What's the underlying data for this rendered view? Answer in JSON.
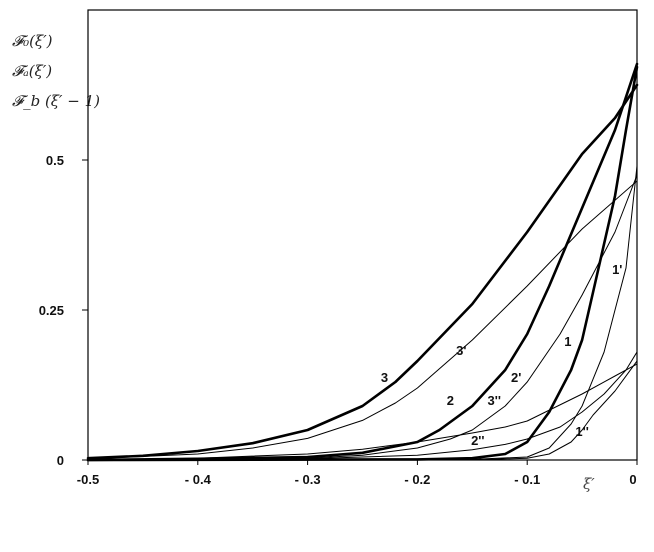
{
  "chart_data": {
    "type": "line",
    "y_axis_title_lines": [
      "𝓕₀(ξ′)",
      "𝓕ₐ(ξ′)",
      "𝓕_b (ξ′ − 1)"
    ],
    "xlabel": "ξ′",
    "xlim": [
      -0.5,
      0
    ],
    "ylim": [
      0,
      0.75
    ],
    "x_ticks": [
      {
        "value": -0.5,
        "label": "-0.5"
      },
      {
        "value": -0.4,
        "label": "- 0.4"
      },
      {
        "value": -0.3,
        "label": "- 0.3"
      },
      {
        "value": -0.2,
        "label": "- 0.2"
      },
      {
        "value": -0.1,
        "label": "- 0.1"
      },
      {
        "value": 0,
        "label": "0"
      }
    ],
    "y_ticks": [
      {
        "value": 0,
        "label": "0"
      },
      {
        "value": 0.25,
        "label": "0.25"
      },
      {
        "value": 0.5,
        "label": "0.5"
      }
    ],
    "grid": false,
    "legend": "none",
    "series": [
      {
        "label": "3",
        "weight": "bold",
        "points": [
          [
            -0.5,
            0.003
          ],
          [
            -0.45,
            0.007
          ],
          [
            -0.4,
            0.015
          ],
          [
            -0.35,
            0.028
          ],
          [
            -0.3,
            0.05
          ],
          [
            -0.25,
            0.09
          ],
          [
            -0.22,
            0.13
          ],
          [
            -0.2,
            0.165
          ],
          [
            -0.15,
            0.26
          ],
          [
            -0.1,
            0.38
          ],
          [
            -0.05,
            0.51
          ],
          [
            -0.02,
            0.57
          ],
          [
            0,
            0.625
          ]
        ]
      },
      {
        "label": "2",
        "weight": "bold",
        "points": [
          [
            -0.5,
            0.0
          ],
          [
            -0.4,
            0.002
          ],
          [
            -0.3,
            0.005
          ],
          [
            -0.25,
            0.012
          ],
          [
            -0.2,
            0.03
          ],
          [
            -0.18,
            0.05
          ],
          [
            -0.15,
            0.09
          ],
          [
            -0.12,
            0.15
          ],
          [
            -0.1,
            0.21
          ],
          [
            -0.08,
            0.29
          ],
          [
            -0.05,
            0.42
          ],
          [
            -0.02,
            0.55
          ],
          [
            0,
            0.66
          ]
        ]
      },
      {
        "label": "1",
        "weight": "bold",
        "points": [
          [
            -0.5,
            0.0
          ],
          [
            -0.2,
            0.001
          ],
          [
            -0.15,
            0.003
          ],
          [
            -0.12,
            0.01
          ],
          [
            -0.1,
            0.03
          ],
          [
            -0.08,
            0.08
          ],
          [
            -0.06,
            0.15
          ],
          [
            -0.05,
            0.2
          ],
          [
            -0.04,
            0.28
          ],
          [
            -0.02,
            0.44
          ],
          [
            -0.01,
            0.55
          ],
          [
            0,
            0.655
          ]
        ]
      },
      {
        "label": "3'",
        "weight": "thin",
        "points": [
          [
            -0.5,
            0.002
          ],
          [
            -0.4,
            0.01
          ],
          [
            -0.35,
            0.02
          ],
          [
            -0.3,
            0.036
          ],
          [
            -0.25,
            0.066
          ],
          [
            -0.22,
            0.095
          ],
          [
            -0.2,
            0.12
          ],
          [
            -0.15,
            0.2
          ],
          [
            -0.1,
            0.29
          ],
          [
            -0.05,
            0.385
          ],
          [
            0,
            0.465
          ]
        ]
      },
      {
        "label": "2'",
        "weight": "thin",
        "points": [
          [
            -0.5,
            0.0
          ],
          [
            -0.3,
            0.003
          ],
          [
            -0.25,
            0.008
          ],
          [
            -0.2,
            0.02
          ],
          [
            -0.17,
            0.035
          ],
          [
            -0.15,
            0.05
          ],
          [
            -0.12,
            0.09
          ],
          [
            -0.1,
            0.13
          ],
          [
            -0.07,
            0.21
          ],
          [
            -0.05,
            0.275
          ],
          [
            -0.02,
            0.38
          ],
          [
            0,
            0.475
          ]
        ]
      },
      {
        "label": "1'",
        "weight": "thin",
        "points": [
          [
            -0.5,
            0.0
          ],
          [
            -0.15,
            0.001
          ],
          [
            -0.1,
            0.005
          ],
          [
            -0.08,
            0.02
          ],
          [
            -0.06,
            0.06
          ],
          [
            -0.05,
            0.09
          ],
          [
            -0.03,
            0.18
          ],
          [
            -0.02,
            0.25
          ],
          [
            -0.01,
            0.32
          ],
          [
            0,
            0.49
          ]
        ]
      },
      {
        "label": "3''",
        "weight": "thin",
        "points": [
          [
            -0.5,
            0.0
          ],
          [
            -0.4,
            0.003
          ],
          [
            -0.3,
            0.01
          ],
          [
            -0.25,
            0.018
          ],
          [
            -0.2,
            0.03
          ],
          [
            -0.15,
            0.045
          ],
          [
            -0.12,
            0.055
          ],
          [
            -0.1,
            0.065
          ],
          [
            -0.05,
            0.11
          ],
          [
            -0.02,
            0.14
          ],
          [
            0,
            0.16
          ]
        ]
      },
      {
        "label": "2''",
        "weight": "thin",
        "points": [
          [
            -0.5,
            0.0
          ],
          [
            -0.3,
            0.002
          ],
          [
            -0.2,
            0.008
          ],
          [
            -0.15,
            0.017
          ],
          [
            -0.12,
            0.026
          ],
          [
            -0.1,
            0.035
          ],
          [
            -0.07,
            0.055
          ],
          [
            -0.05,
            0.08
          ],
          [
            -0.03,
            0.11
          ],
          [
            -0.01,
            0.15
          ],
          [
            0,
            0.18
          ]
        ]
      },
      {
        "label": "1''",
        "weight": "thin",
        "points": [
          [
            -0.5,
            0.0
          ],
          [
            -0.15,
            0.0
          ],
          [
            -0.1,
            0.003
          ],
          [
            -0.08,
            0.01
          ],
          [
            -0.06,
            0.03
          ],
          [
            -0.05,
            0.05
          ],
          [
            -0.04,
            0.075
          ],
          [
            -0.02,
            0.115
          ],
          [
            0,
            0.165
          ]
        ]
      }
    ]
  }
}
